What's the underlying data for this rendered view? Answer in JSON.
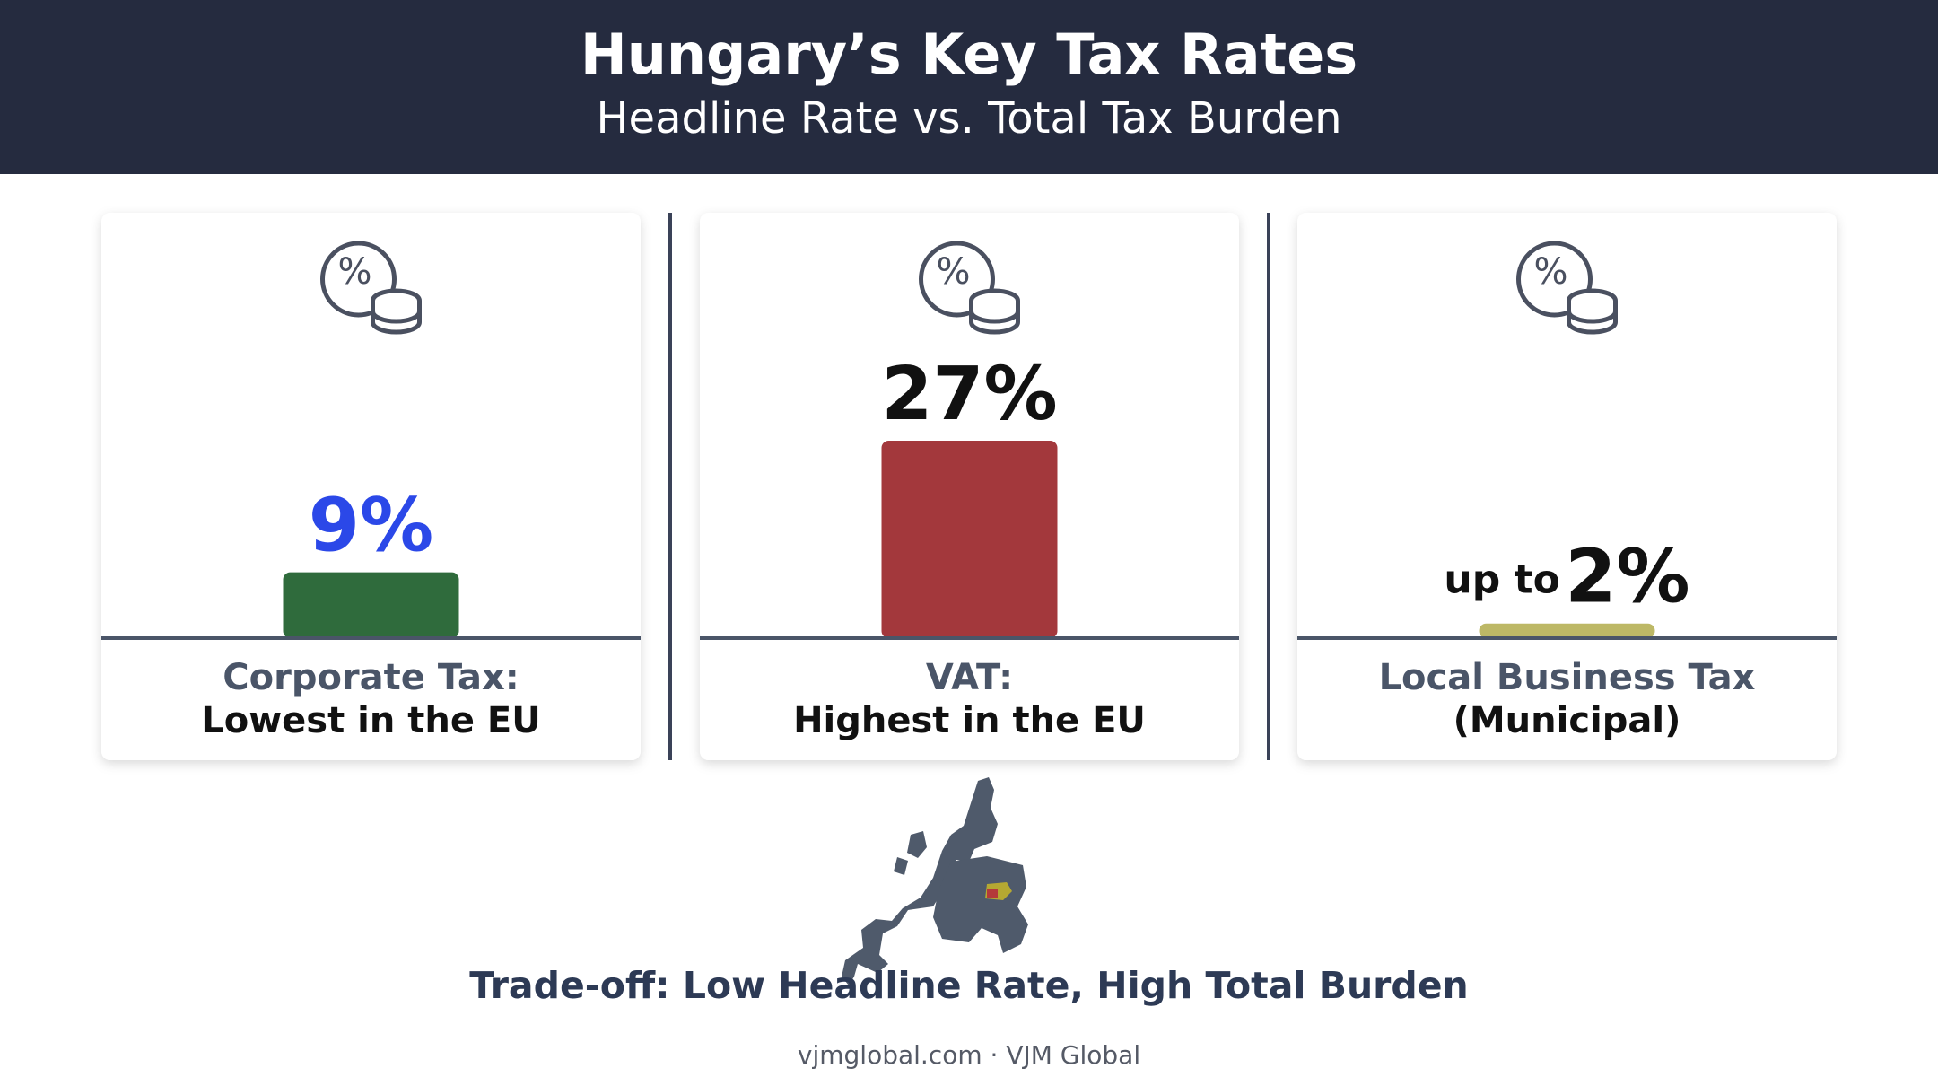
{
  "chart_data": {
    "type": "bar",
    "title": "Hungary’s Key Tax Rates",
    "subtitle": "Headline Rate vs. Total Tax Burden",
    "categories": [
      "Corporate Tax:",
      "VAT:",
      "Local Business Tax"
    ],
    "category_notes": [
      "Lowest in the EU",
      "Highest in the EU",
      "(Municipal)"
    ],
    "values": [
      9,
      27,
      2
    ],
    "value_labels": [
      "9%",
      "27%",
      "2%"
    ],
    "value_label_prefixes": [
      null,
      null,
      "up to"
    ],
    "value_label_colors": [
      "#2b48e8",
      "#111111",
      "#111111"
    ],
    "colors": [
      "#2f6b3c",
      "#a3383c",
      "#bdb866"
    ],
    "footer": "Trade-off: Low Headline Rate, High Total Burden",
    "source": "vjmglobal.com · VJM Global"
  }
}
